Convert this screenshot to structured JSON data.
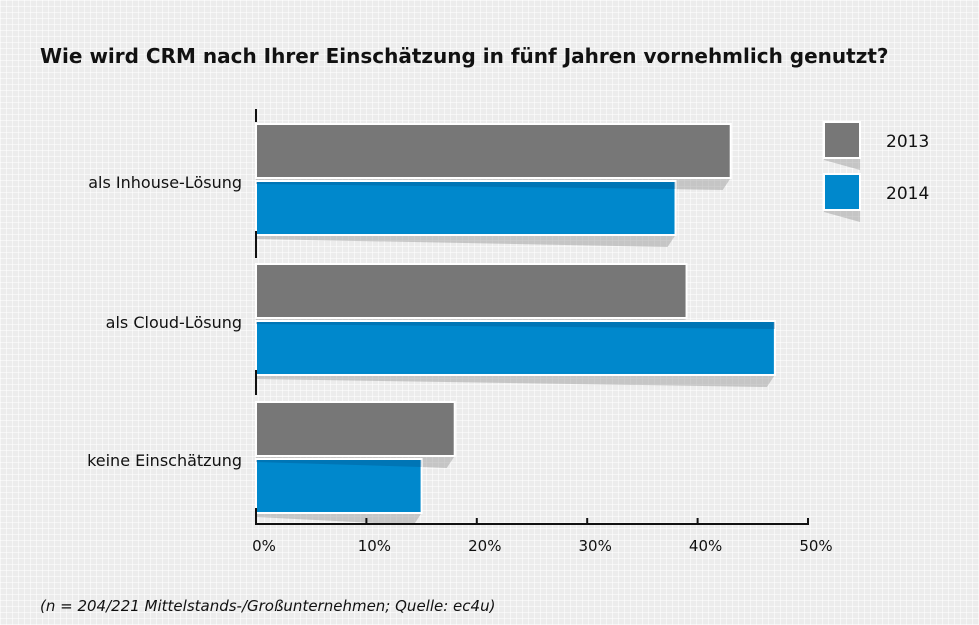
{
  "chart_data": {
    "type": "bar",
    "orientation": "horizontal",
    "title": "Wie wird CRM nach Ihrer Einschätzung in fünf Jahren vornehmlich genutzt?",
    "categories": [
      "als Inhouse-Lösung",
      "als Cloud-Lösung",
      "keine Einschätzung"
    ],
    "series": [
      {
        "name": "2013",
        "color": "#777777",
        "values": [
          43,
          39,
          18
        ]
      },
      {
        "name": "2014",
        "color": "#0088cc",
        "values": [
          38,
          47,
          15
        ]
      }
    ],
    "xlim": [
      0,
      50
    ],
    "ticks": [
      0,
      10,
      20,
      30,
      40,
      50
    ],
    "tick_labels": [
      "0%",
      "10%",
      "20%",
      "30%",
      "40%",
      "50%"
    ],
    "legend_position": "top-right",
    "footnote": "(n = 204/221 Mittelstands-/Großunternehmen; Quelle: ec4u)"
  }
}
